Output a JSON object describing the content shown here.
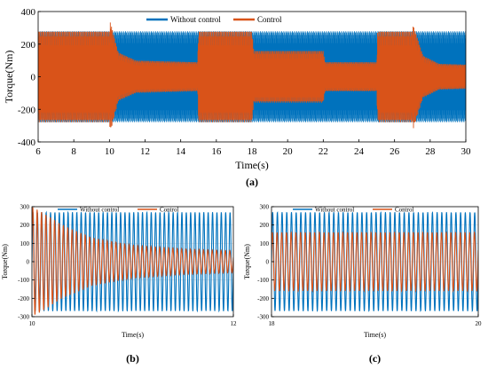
{
  "colors": {
    "without_control": "#0072BD",
    "control": "#D95319"
  },
  "chart_data": [
    {
      "id": "a",
      "type": "line",
      "caption": "(a)",
      "xlabel": "Time(s)",
      "ylabel": "Torque(Nm)",
      "xlim": [
        6,
        30
      ],
      "ylim": [
        -400,
        400
      ],
      "xticks": [
        6,
        8,
        10,
        12,
        14,
        16,
        18,
        20,
        22,
        24,
        26,
        28,
        30
      ],
      "yticks": [
        -400,
        -200,
        0,
        200,
        400
      ],
      "legend_position": "top-center",
      "series": [
        {
          "name": "Without control",
          "color": "#0072BD",
          "envelope": [
            {
              "t": 6,
              "amp": 280
            },
            {
              "t": 30,
              "amp": 280
            }
          ]
        },
        {
          "name": "Control",
          "color": "#D95319",
          "envelope": [
            {
              "t": 6,
              "amp": 280
            },
            {
              "t": 10,
              "amp": 280
            },
            {
              "t": 10.05,
              "amp": 340
            },
            {
              "t": 10.5,
              "amp": 150
            },
            {
              "t": 11.5,
              "amp": 100
            },
            {
              "t": 14.95,
              "amp": 90
            },
            {
              "t": 15,
              "amp": 280
            },
            {
              "t": 18,
              "amp": 280
            },
            {
              "t": 18.1,
              "amp": 160
            },
            {
              "t": 22,
              "amp": 160
            },
            {
              "t": 22.1,
              "amp": 90
            },
            {
              "t": 25,
              "amp": 90
            },
            {
              "t": 25.05,
              "amp": 280
            },
            {
              "t": 27,
              "amp": 280
            },
            {
              "t": 27.05,
              "amp": 320
            },
            {
              "t": 27.6,
              "amp": 130
            },
            {
              "t": 28.5,
              "amp": 80
            },
            {
              "t": 30,
              "amp": 75
            }
          ]
        }
      ]
    },
    {
      "id": "b",
      "type": "line",
      "caption": "(b)",
      "xlabel": "Time(s)",
      "ylabel": "Torque(Nm)",
      "xlim": [
        10,
        12
      ],
      "ylim": [
        -300,
        300
      ],
      "xticks": [
        10,
        12
      ],
      "yticks": [
        -300,
        -200,
        -100,
        0,
        100,
        200,
        300
      ],
      "legend_position": "top-center",
      "series": [
        {
          "name": "Without control",
          "color": "#0072BD",
          "envelope": [
            {
              "t": 10,
              "amp": 270
            },
            {
              "t": 12,
              "amp": 270
            }
          ]
        },
        {
          "name": "Control",
          "color": "#D95319",
          "envelope": [
            {
              "t": 10,
              "amp": 300
            },
            {
              "t": 10.1,
              "amp": 270
            },
            {
              "t": 10.3,
              "amp": 200
            },
            {
              "t": 10.6,
              "amp": 130
            },
            {
              "t": 11,
              "amp": 90
            },
            {
              "t": 11.5,
              "amp": 70
            },
            {
              "t": 12,
              "amp": 60
            }
          ]
        }
      ]
    },
    {
      "id": "c",
      "type": "line",
      "caption": "(c)",
      "xlabel": "Time(s)",
      "ylabel": "Torque(Nm)",
      "xlim": [
        18,
        20
      ],
      "ylim": [
        -300,
        300
      ],
      "xticks": [
        18,
        20
      ],
      "yticks": [
        -300,
        -200,
        -100,
        0,
        100,
        200,
        300
      ],
      "legend_position": "top-center",
      "series": [
        {
          "name": "Without control",
          "color": "#0072BD",
          "envelope": [
            {
              "t": 18,
              "amp": 270
            },
            {
              "t": 20,
              "amp": 270
            }
          ]
        },
        {
          "name": "Control",
          "color": "#D95319",
          "envelope": [
            {
              "t": 18,
              "amp": 160
            },
            {
              "t": 20,
              "amp": 160
            }
          ]
        }
      ]
    }
  ]
}
